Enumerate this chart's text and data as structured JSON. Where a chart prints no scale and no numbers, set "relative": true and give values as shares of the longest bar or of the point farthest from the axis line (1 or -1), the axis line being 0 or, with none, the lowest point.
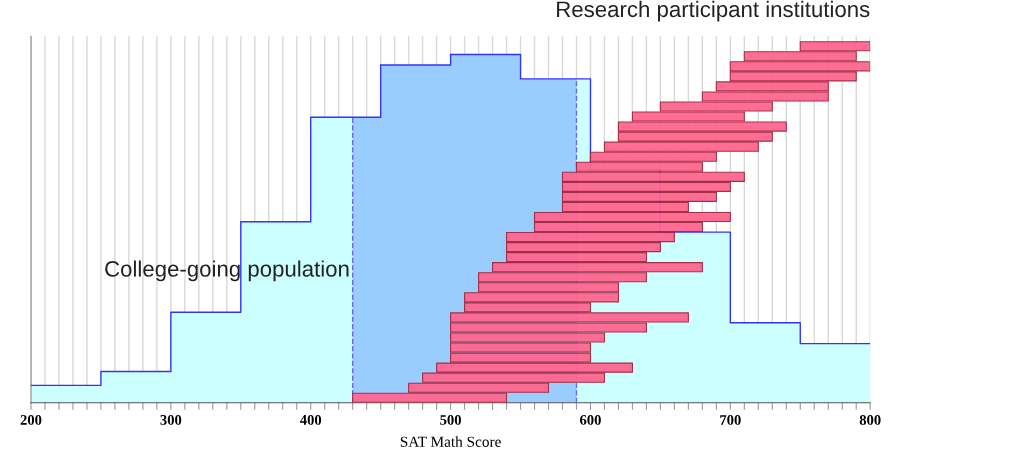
{
  "chart_data": [
    {
      "type": "area",
      "xlabel": "SAT Math Score",
      "relative": true,
      "x": [
        200,
        250,
        250,
        300,
        300,
        350,
        350,
        400,
        400,
        450,
        450,
        500,
        500,
        550,
        550,
        600,
        600,
        650,
        650,
        700,
        700,
        750,
        750,
        800
      ],
      "values": [
        0.05,
        0.05,
        0.09,
        0.09,
        0.26,
        0.26,
        0.52,
        0.52,
        0.82,
        0.82,
        0.97,
        0.97,
        1,
        1,
        0.93,
        0.93,
        0.67,
        0.67,
        0.49,
        0.49,
        0.23,
        0.23,
        0.17,
        0.17
      ],
      "color": "#ccffff",
      "annotations": [
        "College-going population"
      ],
      "xlim": [
        200,
        800
      ],
      "xticks": [
        200,
        {
          "value": 210,
          "label": null
        },
        {
          "value": 220,
          "label": null
        },
        {
          "value": 230,
          "label": null
        },
        {
          "value": 240,
          "label": null
        },
        {
          "value": 250,
          "label": null
        },
        {
          "value": 260,
          "label": null
        },
        {
          "value": 270,
          "label": null
        },
        {
          "value": 280,
          "label": null
        },
        {
          "value": 290,
          "label": null
        },
        300,
        {
          "value": 310,
          "label": null
        },
        {
          "value": 320,
          "label": null
        },
        {
          "value": 330,
          "label": null
        },
        {
          "value": 340,
          "label": null
        },
        {
          "value": 350,
          "label": null
        },
        {
          "value": 360,
          "label": null
        },
        {
          "value": 370,
          "label": null
        },
        {
          "value": 380,
          "label": null
        },
        {
          "value": 390,
          "label": null
        },
        400,
        {
          "value": 410,
          "label": null
        },
        {
          "value": 420,
          "label": null
        },
        {
          "value": 430,
          "label": null
        },
        {
          "value": 440,
          "label": null
        },
        {
          "value": 450,
          "label": null
        },
        {
          "value": 460,
          "label": null
        },
        {
          "value": 470,
          "label": null
        },
        {
          "value": 480,
          "label": null
        },
        {
          "value": 490,
          "label": null
        },
        500,
        {
          "value": 510,
          "label": null
        },
        {
          "value": 520,
          "label": null
        },
        {
          "value": 530,
          "label": null
        },
        {
          "value": 540,
          "label": null
        },
        {
          "value": 550,
          "label": null
        },
        {
          "value": 560,
          "label": null
        },
        {
          "value": 570,
          "label": null
        },
        {
          "value": 580,
          "label": null
        },
        {
          "value": 590,
          "label": null
        },
        600,
        {
          "value": 610,
          "label": null
        },
        {
          "value": 620,
          "label": null
        },
        {
          "value": 630,
          "label": null
        },
        {
          "value": 640,
          "label": null
        },
        {
          "value": 650,
          "label": null
        },
        {
          "value": 660,
          "label": null
        },
        {
          "value": 670,
          "label": null
        },
        {
          "value": 680,
          "label": null
        },
        {
          "value": 690,
          "label": null
        },
        700,
        {
          "value": 710,
          "label": null
        },
        {
          "value": 720,
          "label": null
        },
        {
          "value": 730,
          "label": null
        },
        {
          "value": 740,
          "label": null
        },
        {
          "value": 750,
          "label": null
        },
        {
          "value": 760,
          "label": null
        },
        {
          "value": 770,
          "label": null
        },
        {
          "value": 780,
          "label": null
        },
        {
          "value": 790,
          "label": null
        },
        800
      ],
      "grid": "x",
      "bands": [
        {
          "axis": "x",
          "from": 430,
          "to": 590,
          "color": "#99ccff"
        }
      ]
    },
    {
      "type": "bar",
      "orientation": "horizontal",
      "tick_labels": false,
      "grid": "x",
      "xlim": [
        200,
        800
      ],
      "xticks": [
        200,
        300,
        400,
        500,
        600,
        700,
        800
      ],
      "categories": [
        null,
        null,
        null,
        null,
        null,
        null,
        null,
        null,
        null,
        null,
        null,
        null,
        null,
        null,
        null,
        null,
        null,
        null,
        null,
        null,
        null,
        null,
        null,
        null,
        null,
        null,
        null,
        null,
        null,
        null,
        null,
        null,
        null,
        null,
        null,
        null
      ],
      "series": [
        {
          "name": "Research participant institutions",
          "color": "#ff6690",
          "base": [
            750,
            710,
            700,
            700,
            690,
            680,
            650,
            630,
            620,
            620,
            610,
            600,
            590,
            580,
            580,
            580,
            580,
            560,
            560,
            540,
            540,
            540,
            530,
            520,
            520,
            510,
            510,
            500,
            500,
            500,
            500,
            500,
            490,
            480,
            470,
            430
          ],
          "values": [
            50,
            80,
            100,
            90,
            80,
            90,
            80,
            80,
            120,
            110,
            110,
            90,
            90,
            130,
            120,
            110,
            90,
            140,
            120,
            120,
            110,
            100,
            150,
            120,
            100,
            110,
            90,
            170,
            140,
            110,
            100,
            100,
            140,
            130,
            100,
            110
          ]
        }
      ]
    }
  ]
}
